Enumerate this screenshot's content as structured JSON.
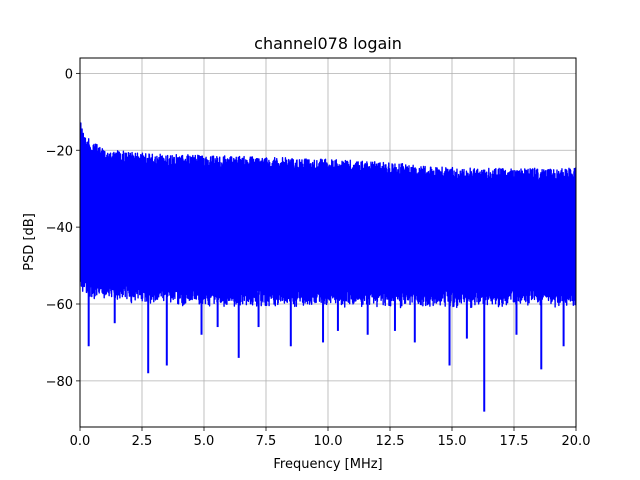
{
  "chart_data": {
    "type": "line",
    "title": "channel078 logain",
    "xlabel": "Frequency [MHz]",
    "ylabel": "PSD [dB]",
    "xlim": [
      0,
      20
    ],
    "ylim": [
      -92,
      4
    ],
    "x_ticks": [
      {
        "value": 0,
        "label": "0.0"
      },
      {
        "value": 2.5,
        "label": "2.5"
      },
      {
        "value": 5,
        "label": "5.0"
      },
      {
        "value": 7.5,
        "label": "7.5"
      },
      {
        "value": 10,
        "label": "10.0"
      },
      {
        "value": 12.5,
        "label": "12.5"
      },
      {
        "value": 15,
        "label": "15.0"
      },
      {
        "value": 17.5,
        "label": "17.5"
      },
      {
        "value": 20,
        "label": "20.0"
      }
    ],
    "y_ticks": [
      {
        "value": 0,
        "label": "0"
      },
      {
        "value": -20,
        "label": "−20"
      },
      {
        "value": -40,
        "label": "−40"
      },
      {
        "value": -60,
        "label": "−60"
      },
      {
        "value": -80,
        "label": "−80"
      }
    ],
    "grid": true,
    "series": [
      {
        "color": "#0000ff",
        "upper_envelope": {
          "x": [
            0,
            0.05,
            0.2,
            0.5,
            1,
            2,
            3,
            5,
            7.5,
            10,
            12.5,
            15,
            17.5,
            20
          ],
          "y": [
            -11,
            -13,
            -16,
            -18,
            -19.5,
            -20.5,
            -21,
            -21.3,
            -21.8,
            -22.3,
            -23.2,
            -24.5,
            -24.8,
            -24.5
          ]
        },
        "lower_envelope": {
          "x": [
            0,
            0.5,
            2,
            5,
            10,
            15,
            20
          ],
          "y": [
            -53,
            -55,
            -56,
            -57,
            -57,
            -57,
            -57
          ]
        },
        "deep_dips": [
          {
            "x": 0.35,
            "y": -71
          },
          {
            "x": 1.4,
            "y": -65
          },
          {
            "x": 2.75,
            "y": -78
          },
          {
            "x": 3.5,
            "y": -76
          },
          {
            "x": 4.9,
            "y": -68
          },
          {
            "x": 5.55,
            "y": -66
          },
          {
            "x": 6.4,
            "y": -74
          },
          {
            "x": 7.2,
            "y": -66
          },
          {
            "x": 8.5,
            "y": -71
          },
          {
            "x": 9.8,
            "y": -70
          },
          {
            "x": 10.4,
            "y": -67
          },
          {
            "x": 11.6,
            "y": -68
          },
          {
            "x": 12.7,
            "y": -67
          },
          {
            "x": 13.5,
            "y": -70
          },
          {
            "x": 14.9,
            "y": -76
          },
          {
            "x": 15.6,
            "y": -69
          },
          {
            "x": 16.3,
            "y": -88
          },
          {
            "x": 17.6,
            "y": -68
          },
          {
            "x": 18.6,
            "y": -77
          },
          {
            "x": 19.5,
            "y": -71
          }
        ]
      }
    ]
  }
}
